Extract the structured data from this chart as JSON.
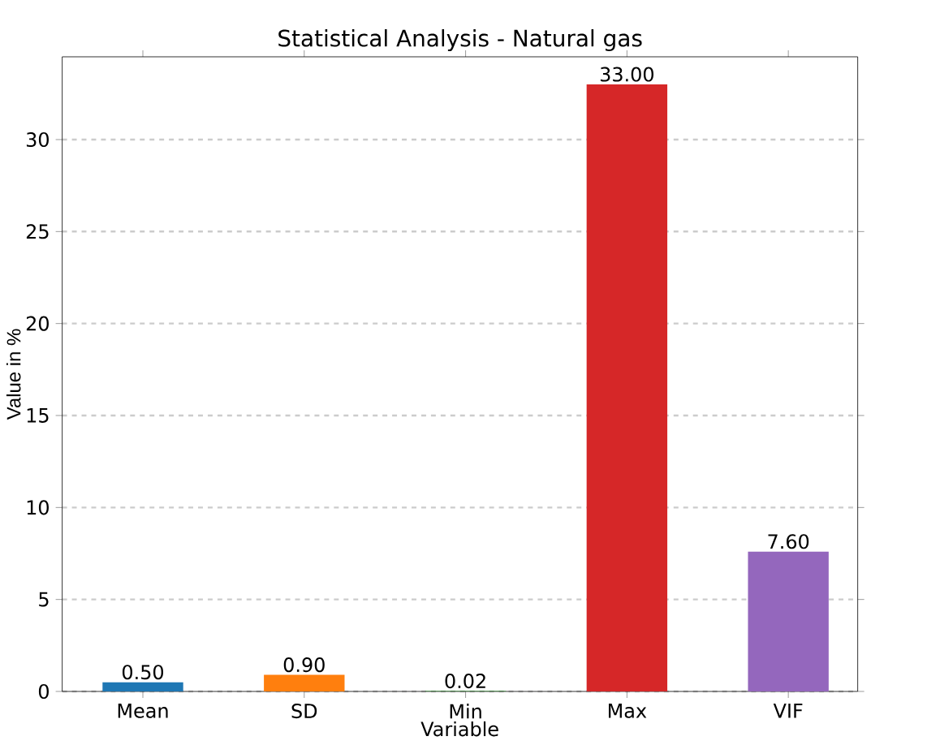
{
  "chart_data": {
    "type": "bar",
    "title": "Statistical Analysis - Natural gas",
    "xlabel": "Variable",
    "ylabel": "Value in %",
    "categories": [
      "Mean",
      "SD",
      "Min",
      "Max",
      "VIF"
    ],
    "values": [
      0.5,
      0.9,
      0.02,
      33.0,
      7.6
    ],
    "colors": [
      "#1f77b4",
      "#ff7f0e",
      "#2ca02c",
      "#d62728",
      "#9467bd"
    ],
    "value_labels": [
      "0.50",
      "0.90",
      "0.02",
      "33.00",
      "7.60"
    ],
    "ylim": [
      0,
      34.5
    ],
    "yticks": [
      0,
      5,
      10,
      15,
      20,
      25,
      30
    ],
    "grid": "y"
  }
}
